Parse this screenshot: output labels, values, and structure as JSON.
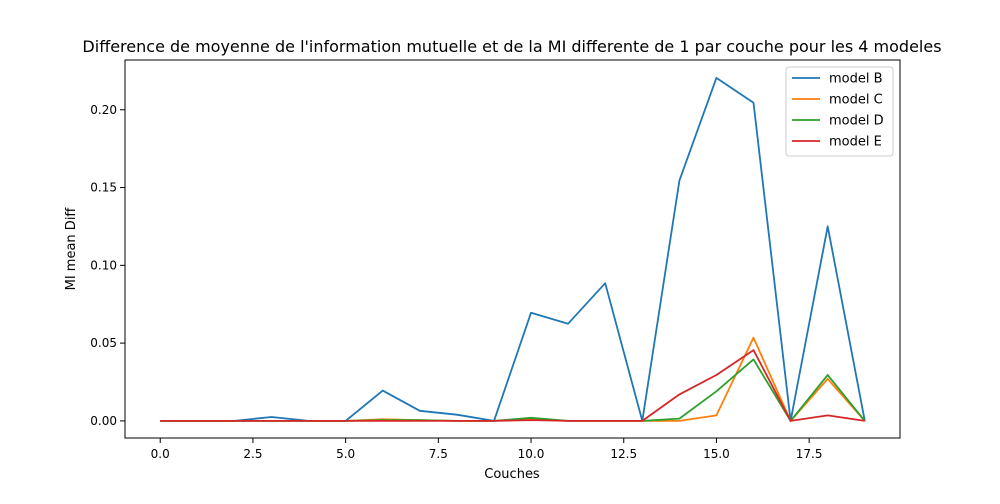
{
  "chart_data": {
    "type": "line",
    "title": "Difference de moyenne de l'information mutuelle et de la MI differente de 1 par couche pour les 4 modeles",
    "xlabel": "Couches",
    "ylabel": "MI mean Diff",
    "xlim": [
      -0.95,
      19.95
    ],
    "ylim": [
      -0.011,
      0.232
    ],
    "x": [
      0,
      1,
      2,
      3,
      4,
      5,
      6,
      7,
      8,
      9,
      10,
      11,
      12,
      13,
      14,
      15,
      16,
      17,
      18,
      19
    ],
    "xticks": [
      0.0,
      2.5,
      5.0,
      7.5,
      10.0,
      12.5,
      15.0,
      17.5
    ],
    "xtick_labels": [
      "0.0",
      "2.5",
      "5.0",
      "7.5",
      "10.0",
      "12.5",
      "15.0",
      "17.5"
    ],
    "yticks": [
      0.0,
      0.05,
      0.1,
      0.15,
      0.2
    ],
    "ytick_labels": [
      "0.00",
      "0.05",
      "0.10",
      "0.15",
      "0.20"
    ],
    "legend_position": "top-right",
    "grid": false,
    "series": [
      {
        "name": "model B",
        "color": "#1f77b4",
        "values": [
          0.0,
          0.0,
          0.0,
          0.0025,
          0.0,
          0.0,
          0.0195,
          0.0065,
          0.004,
          0.0,
          0.0695,
          0.0625,
          0.0885,
          0.0,
          0.1545,
          0.2205,
          0.2045,
          0.0,
          0.125,
          0.0
        ]
      },
      {
        "name": "model C",
        "color": "#ff7f0e",
        "values": [
          0.0,
          0.0,
          0.0,
          0.0,
          0.0,
          0.0,
          0.001,
          0.0005,
          0.0,
          0.0,
          0.001,
          0.0,
          0.0,
          0.0,
          0.0,
          0.0035,
          0.0535,
          0.0,
          0.027,
          0.0
        ]
      },
      {
        "name": "model D",
        "color": "#2ca02c",
        "values": [
          0.0,
          0.0,
          0.0,
          0.0,
          0.0,
          0.0,
          0.0005,
          0.0005,
          0.0,
          0.0,
          0.002,
          0.0,
          0.0,
          0.0,
          0.0015,
          0.019,
          0.0395,
          0.0,
          0.0295,
          0.0
        ]
      },
      {
        "name": "model E",
        "color": "#d62728",
        "values": [
          0.0,
          0.0,
          0.0,
          0.0,
          0.0,
          0.0,
          0.0,
          0.0,
          0.0,
          0.0,
          0.0005,
          0.0,
          0.0,
          0.0,
          0.017,
          0.0295,
          0.0455,
          0.0,
          0.0035,
          0.0
        ]
      }
    ]
  }
}
